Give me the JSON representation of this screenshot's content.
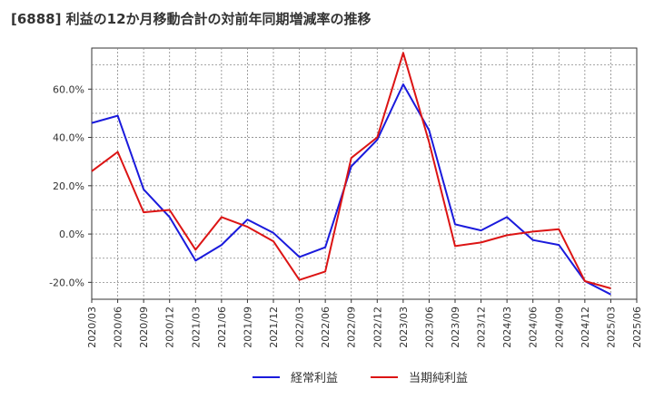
{
  "chart_data": {
    "type": "line",
    "title": "[6888]  利益の12か月移動合計の対前年同期増減率の推移",
    "xlabel": "",
    "ylabel": "",
    "ylim": [
      -27,
      77
    ],
    "yticks": [
      -20,
      0,
      20,
      40,
      60
    ],
    "ytick_labels": [
      "-20.0%",
      "0.0%",
      "20.0%",
      "40.0%",
      "60.0%"
    ],
    "categories": [
      "2020/03",
      "2020/06",
      "2020/09",
      "2020/12",
      "2021/03",
      "2021/06",
      "2021/09",
      "2021/12",
      "2022/03",
      "2022/06",
      "2022/09",
      "2022/12",
      "2023/03",
      "2023/06",
      "2023/09",
      "2023/12",
      "2024/03",
      "2024/06",
      "2024/09",
      "2024/12",
      "2025/03",
      "2025/06"
    ],
    "grid": true,
    "legend_position": "bottom",
    "series": [
      {
        "name": "経常利益",
        "color": "#1a1adc",
        "values": [
          46.0,
          49.0,
          18.5,
          7.0,
          -11.0,
          -4.5,
          6.0,
          0.5,
          -9.5,
          -5.5,
          28.0,
          39.0,
          62.0,
          43.0,
          4.0,
          1.5,
          7.0,
          -2.5,
          -4.5,
          -19.5,
          -25.0,
          null
        ]
      },
      {
        "name": "当期純利益",
        "color": "#dc1414",
        "values": [
          26.0,
          34.0,
          9.0,
          10.0,
          -6.5,
          7.0,
          3.0,
          -3.0,
          -19.0,
          -15.5,
          31.5,
          40.0,
          75.0,
          38.0,
          -5.0,
          -3.5,
          -0.5,
          1.0,
          2.0,
          -19.5,
          -22.5,
          null
        ]
      }
    ]
  }
}
